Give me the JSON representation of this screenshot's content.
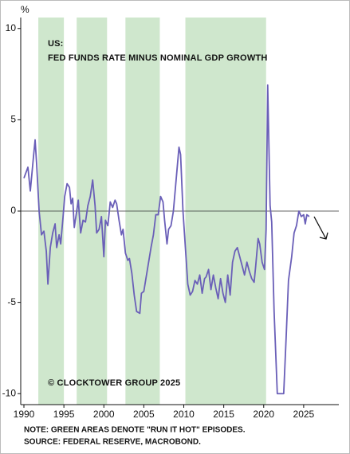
{
  "chart_data": {
    "type": "line",
    "y_unit": "%",
    "title": "US:",
    "subtitle": "FED FUNDS RATE MINUS NOMINAL GDP GROWTH",
    "annotation": "© CLOCKTOWER GROUP 2025",
    "notes": [
      "NOTE: GREEN AREAS DENOTE \"RUN IT HOT\" EPISODES.",
      "SOURCE: FEDERAL RESERVE, MACROBOND."
    ],
    "shaded_spans": [
      [
        1991.8,
        1995.0
      ],
      [
        1996.6,
        2000.4
      ],
      [
        2002.7,
        2007.0
      ],
      [
        2010.2,
        2020.3
      ]
    ],
    "shade_color": "#cfe7cd",
    "color": "#6a5fb8",
    "x": [
      1990.0,
      1990.5,
      1990.8,
      1991.2,
      1991.4,
      1991.6,
      1991.9,
      1992.2,
      1992.5,
      1992.8,
      1993.0,
      1993.3,
      1993.6,
      1993.9,
      1994.1,
      1994.4,
      1994.6,
      1994.9,
      1995.1,
      1995.4,
      1995.7,
      1995.9,
      1996.1,
      1996.3,
      1996.6,
      1996.8,
      1997.1,
      1997.4,
      1997.7,
      1998.0,
      1998.3,
      1998.6,
      1998.9,
      1999.1,
      1999.4,
      1999.7,
      2000.0,
      2000.2,
      2000.5,
      2000.8,
      2001.1,
      2001.4,
      2001.6,
      2001.9,
      2002.2,
      2002.4,
      2002.7,
      2003.0,
      2003.2,
      2003.5,
      2003.8,
      2004.1,
      2004.5,
      2004.7,
      2005.0,
      2005.3,
      2005.6,
      2005.9,
      2006.2,
      2006.5,
      2006.8,
      2007.1,
      2007.4,
      2007.6,
      2007.9,
      2008.1,
      2008.4,
      2008.7,
      2009.0,
      2009.4,
      2009.6,
      2009.9,
      2010.2,
      2010.5,
      2010.8,
      2011.1,
      2011.4,
      2011.7,
      2012.0,
      2012.3,
      2012.6,
      2012.8,
      2013.1,
      2013.4,
      2013.7,
      2014.0,
      2014.3,
      2014.6,
      2014.9,
      2015.2,
      2015.5,
      2015.8,
      2016.1,
      2016.4,
      2016.7,
      2017.0,
      2017.3,
      2017.6,
      2017.9,
      2018.2,
      2018.5,
      2018.8,
      2019.0,
      2019.3,
      2019.5,
      2019.8,
      2020.1,
      2020.3,
      2020.5,
      2020.8,
      2021.0,
      2021.3,
      2021.7,
      2022.5,
      2022.8,
      2023.1,
      2023.5,
      2023.8,
      2024.1,
      2024.4,
      2024.7,
      2025.0,
      2025.2,
      2025.4,
      2025.7
    ],
    "values": [
      1.8,
      2.4,
      1.1,
      3.0,
      3.9,
      2.5,
      0.0,
      -1.3,
      -1.1,
      -2.2,
      -4.0,
      -2.0,
      -1.2,
      -0.7,
      -2.0,
      -1.3,
      -1.8,
      -0.3,
      0.8,
      1.5,
      1.3,
      0.4,
      0.7,
      -0.9,
      0.0,
      0.6,
      -1.2,
      -0.5,
      -0.6,
      0.3,
      0.8,
      1.7,
      0.3,
      -1.2,
      -1.0,
      -0.3,
      -2.5,
      -0.5,
      -0.8,
      0.5,
      0.2,
      0.6,
      0.4,
      -0.5,
      -1.3,
      -1.0,
      -2.3,
      -2.7,
      -2.6,
      -3.4,
      -4.6,
      -5.5,
      -5.6,
      -4.5,
      -4.4,
      -3.6,
      -2.8,
      -2.0,
      -1.3,
      -0.2,
      -0.2,
      0.8,
      0.5,
      -0.5,
      -1.8,
      -1.0,
      -0.8,
      0.0,
      1.5,
      3.5,
      3.1,
      0.0,
      -2.0,
      -4.0,
      -4.6,
      -4.4,
      -3.8,
      -4.0,
      -3.5,
      -4.5,
      -3.7,
      -3.6,
      -3.2,
      -4.3,
      -3.5,
      -4.2,
      -4.8,
      -3.7,
      -4.5,
      -5.0,
      -3.5,
      -4.6,
      -2.8,
      -2.2,
      -2.0,
      -2.5,
      -3.0,
      -3.5,
      -2.8,
      -3.3,
      -3.7,
      -3.9,
      -3.0,
      -1.5,
      -1.8,
      -2.8,
      -3.2,
      -1.0,
      6.9,
      0.3,
      -0.6,
      -5.5,
      -10.0,
      -10.0,
      -7.0,
      -3.8,
      -2.5,
      -1.2,
      -0.8,
      0.0,
      -0.3,
      -0.2,
      -0.7,
      -0.2,
      -0.3
    ],
    "xlim": [
      1989.6,
      2029.4
    ],
    "ylim": [
      -10.6,
      10.6
    ],
    "xticks": [
      1990,
      1995,
      2000,
      2005,
      2010,
      2015,
      2020,
      2025
    ],
    "yticks": [
      10,
      5,
      0,
      -5,
      -10
    ]
  }
}
